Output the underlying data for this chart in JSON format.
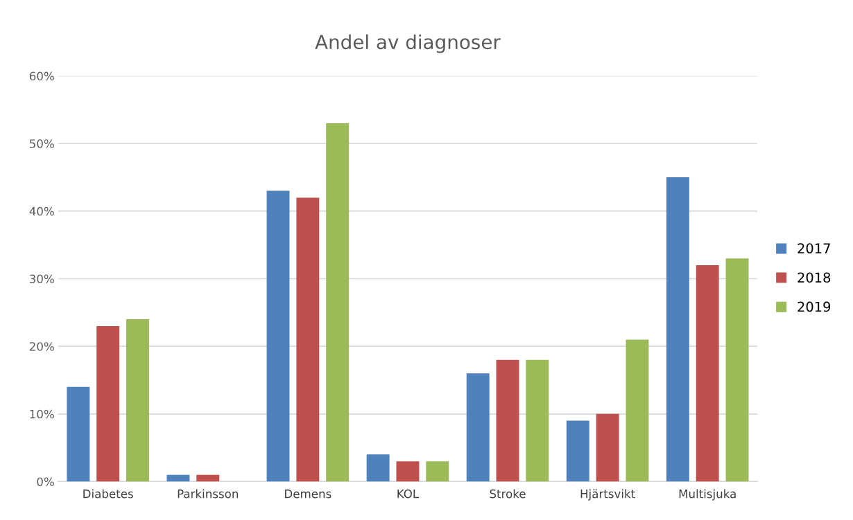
{
  "chart_data": {
    "type": "bar",
    "title": "Andel av diagnoser",
    "categories": [
      "Diabetes",
      "Parkinsson",
      "Demens",
      "KOL",
      "Stroke",
      "Hjärtsvikt",
      "Multisjuka"
    ],
    "series": [
      {
        "name": "2017",
        "color": "#4f81bd",
        "values": [
          14,
          1,
          43,
          4,
          16,
          9,
          45
        ]
      },
      {
        "name": "2018",
        "color": "#c0504d",
        "values": [
          23,
          1,
          42,
          3,
          18,
          10,
          32
        ]
      },
      {
        "name": "2019",
        "color": "#9bbb59",
        "values": [
          24,
          0,
          53,
          3,
          18,
          21,
          33
        ]
      }
    ],
    "ylim": [
      0,
      60
    ],
    "yticks": [
      {
        "value": 0,
        "label": "0%"
      },
      {
        "value": 10,
        "label": "10%"
      },
      {
        "value": 20,
        "label": "20%"
      },
      {
        "value": 30,
        "label": "30%"
      },
      {
        "value": 40,
        "label": "40%"
      },
      {
        "value": 50,
        "label": "50%"
      },
      {
        "value": 60,
        "label": "60%"
      }
    ],
    "grid": "y",
    "legend": "right"
  }
}
